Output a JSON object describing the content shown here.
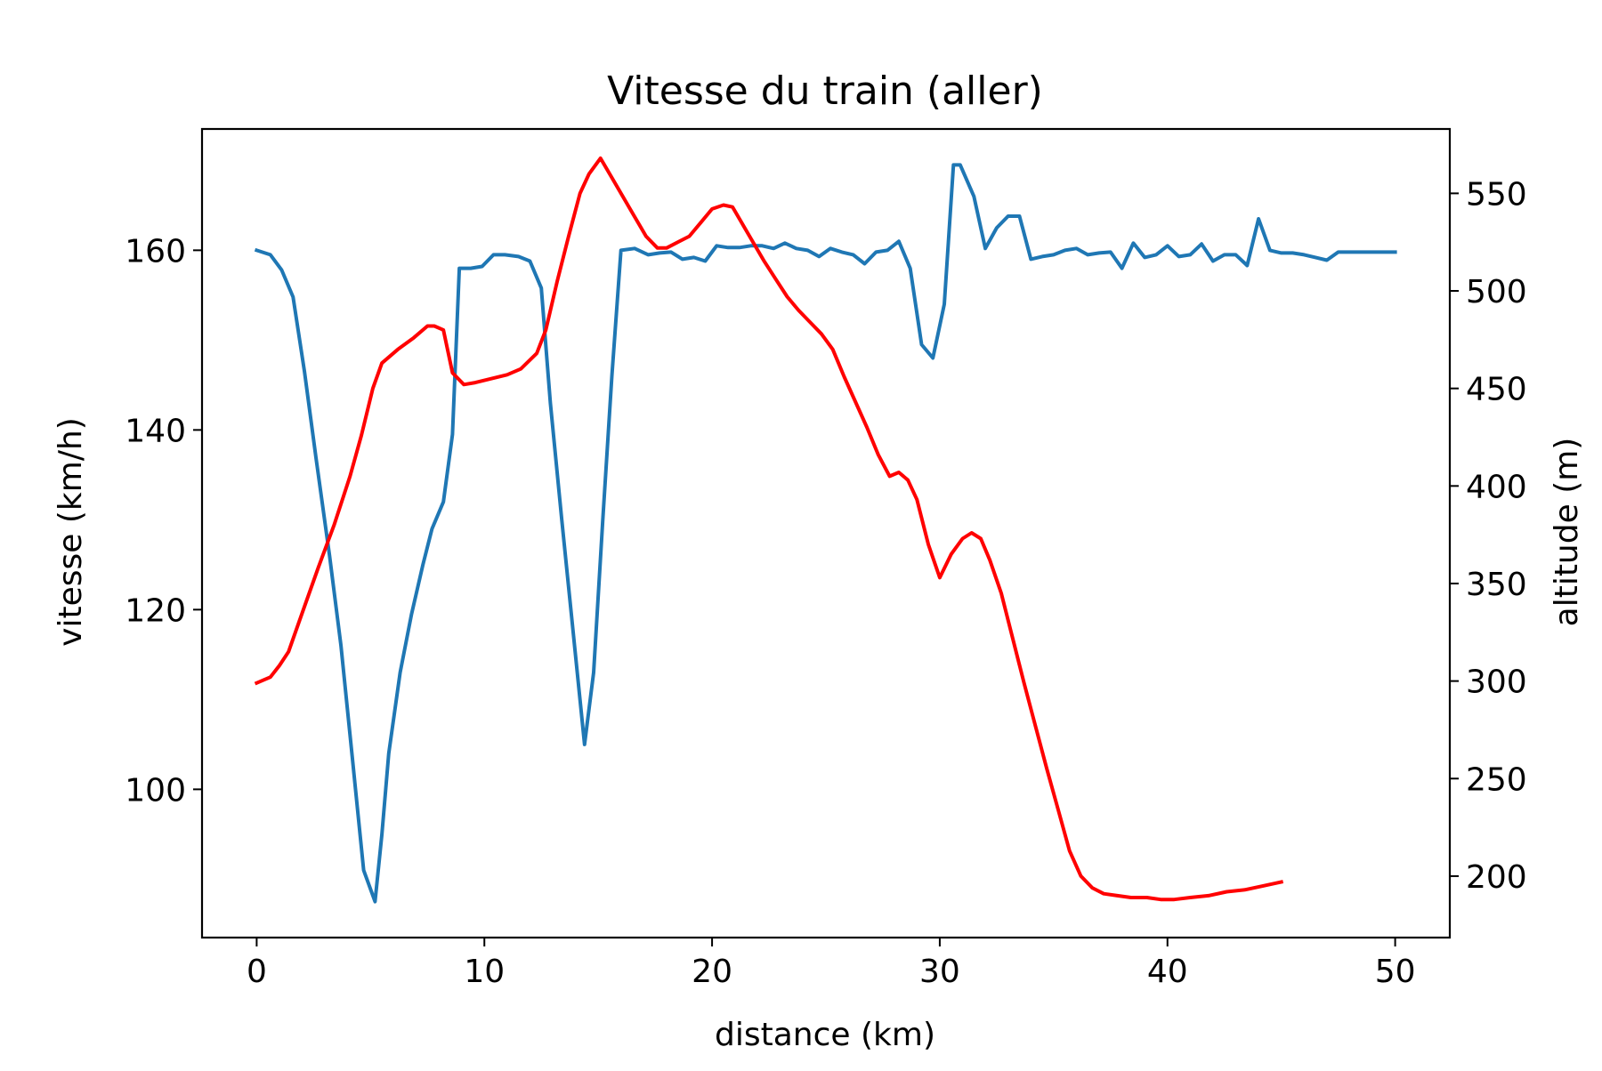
{
  "chart_data": {
    "type": "line",
    "title": "Vitesse du train (aller)",
    "xlabel": "distance (km)",
    "ylabel": "vitesse (km/h)",
    "ylabel_right": "altitude (m)",
    "xlim": [
      -2.4,
      52.4
    ],
    "ylim": [
      83.5,
      173.5
    ],
    "ylim_right": [
      168.5,
      583.0
    ],
    "xticks": [
      0,
      10,
      20,
      30,
      40,
      50
    ],
    "yticks": [
      100,
      120,
      140,
      160
    ],
    "yticks_right": [
      200,
      250,
      300,
      350,
      400,
      450,
      500,
      550
    ],
    "grid": false,
    "series": [
      {
        "color": "#1f77b4",
        "axis": "left",
        "x": [
          0,
          0.6,
          1.1,
          1.6,
          2.1,
          2.6,
          3.2,
          3.7,
          4.2,
          4.7,
          5.2,
          5.5,
          5.8,
          6.3,
          6.8,
          7.3,
          7.7,
          8.2,
          8.6,
          8.9,
          9.4,
          9.9,
          10.4,
          10.9,
          11.5,
          12.0,
          12.5,
          12.9,
          13.4,
          13.9,
          14.4,
          14.8,
          15.2,
          15.6,
          16.0,
          16.6,
          17.2,
          17.7,
          18.2,
          18.7,
          19.2,
          19.7,
          20.2,
          20.7,
          21.2,
          21.7,
          22.2,
          22.7,
          23.2,
          23.7,
          24.2,
          24.7,
          25.2,
          25.7,
          26.2,
          26.7,
          27.2,
          27.7,
          28.2,
          28.7,
          29.2,
          29.7,
          30.2,
          30.6,
          30.9,
          31.5,
          32.0,
          32.5,
          33.0,
          33.5,
          34.0,
          34.5,
          35.0,
          35.5,
          36.0,
          36.5,
          37.0,
          37.5,
          38.0,
          38.5,
          39.0,
          39.5,
          40.0,
          40.5,
          41.0,
          41.5,
          42.0,
          42.5,
          43.0,
          43.5,
          44.0,
          44.5,
          45.0,
          45.5,
          46.0,
          46.5,
          47.0,
          47.5,
          48.0,
          48.5,
          49.0,
          49.5,
          50.0
        ],
        "values": [
          160.0,
          159.5,
          157.8,
          154.8,
          146.5,
          137.0,
          126.0,
          116.0,
          103.5,
          91.0,
          87.5,
          95.0,
          104.0,
          113.0,
          119.5,
          125.0,
          129.0,
          132.0,
          139.5,
          158.0,
          158.0,
          158.2,
          159.5,
          159.5,
          159.3,
          158.8,
          155.8,
          143.0,
          130.0,
          117.5,
          105.0,
          113.0,
          130.0,
          146.0,
          160.0,
          160.2,
          159.5,
          159.7,
          159.8,
          159.0,
          159.2,
          158.8,
          160.5,
          160.3,
          160.3,
          160.5,
          160.5,
          160.2,
          160.8,
          160.2,
          160.0,
          159.3,
          160.2,
          159.8,
          159.5,
          158.5,
          159.8,
          160.0,
          161.0,
          158.0,
          149.5,
          148.0,
          154.0,
          169.5,
          169.5,
          166.0,
          160.2,
          162.5,
          163.8,
          163.8,
          159.0,
          159.3,
          159.5,
          160.0,
          160.2,
          159.5,
          159.7,
          159.8,
          158.0,
          160.8,
          159.2,
          159.5,
          160.5,
          159.3,
          159.5,
          160.7,
          158.8,
          159.5,
          159.5,
          158.3,
          163.5,
          160.0,
          159.7,
          159.7,
          159.5,
          159.2,
          158.9,
          159.8,
          159.8,
          159.8,
          159.8,
          159.8,
          159.8
        ],
        "_unused": null
      },
      {
        "color": "#ff0000",
        "axis": "right",
        "x": [
          0,
          0.6,
          1.0,
          1.4,
          2.0,
          2.7,
          3.4,
          4.1,
          4.6,
          5.1,
          5.5,
          6.2,
          6.9,
          7.5,
          7.8,
          8.2,
          8.6,
          9.1,
          9.6,
          10.3,
          11.0,
          11.6,
          12.3,
          12.7,
          13.2,
          13.7,
          14.2,
          14.6,
          15.1,
          15.6,
          16.1,
          16.6,
          17.1,
          17.6,
          18.0,
          19.0,
          19.5,
          20.0,
          20.5,
          20.9,
          21.3,
          21.8,
          22.3,
          22.8,
          23.3,
          23.8,
          24.3,
          24.8,
          25.3,
          25.8,
          26.3,
          26.8,
          27.3,
          27.8,
          28.2,
          28.6,
          29.0,
          29.5,
          30.0,
          30.5,
          31.0,
          31.4,
          31.8,
          32.2,
          32.7,
          33.2,
          33.7,
          34.2,
          34.7,
          35.2,
          35.7,
          36.2,
          36.7,
          37.2,
          37.8,
          38.4,
          39.1,
          39.7,
          40.3,
          41.0,
          41.8,
          42.6,
          43.4,
          44.2,
          45.0
        ],
        "values": [
          299,
          302,
          308,
          315,
          335,
          358,
          380,
          405,
          426,
          450,
          463,
          470,
          476,
          482,
          482,
          480,
          458,
          452,
          453,
          455,
          457,
          460,
          468,
          480,
          505,
          528,
          550,
          560,
          568,
          558,
          548,
          538,
          528,
          522,
          522,
          528,
          535,
          542,
          544,
          543,
          535,
          525,
          515,
          506,
          497,
          490,
          484,
          478,
          470,
          456,
          443,
          430,
          416,
          405,
          407,
          403,
          393,
          370,
          353,
          365,
          373,
          376,
          373,
          362,
          345,
          322,
          299,
          277,
          255,
          234,
          213,
          200,
          194,
          191,
          190,
          189,
          189,
          188,
          188,
          189,
          190,
          192,
          193,
          195,
          197
        ]
      }
    ]
  }
}
